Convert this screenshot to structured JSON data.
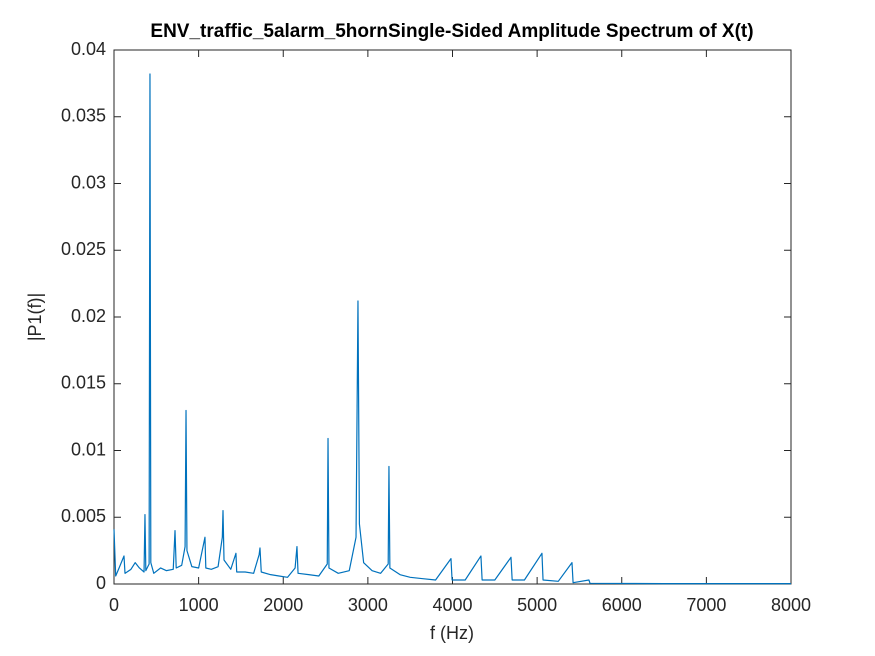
{
  "chart_data": {
    "type": "line",
    "title": "ENV_traffic_5alarm_5hornSingle-Sided Amplitude Spectrum of X(t)",
    "xlabel": "f (Hz)",
    "ylabel": "|P1(f)|",
    "xlim": [
      0,
      8000
    ],
    "ylim": [
      0,
      0.04
    ],
    "xticks": [
      0,
      1000,
      2000,
      3000,
      4000,
      5000,
      6000,
      7000,
      8000
    ],
    "yticks": [
      0,
      0.005,
      0.01,
      0.015,
      0.02,
      0.025,
      0.03,
      0.035,
      0.04
    ],
    "grid": false,
    "series": [
      {
        "color": "#0072bd",
        "x": [
          0,
          20,
          60,
          118,
          130,
          200,
          250,
          300,
          355,
          366,
          376,
          415,
          425,
          435,
          470,
          550,
          620,
          700,
          721,
          735,
          800,
          840,
          851,
          862,
          920,
          1000,
          1075,
          1085,
          1150,
          1230,
          1280,
          1288,
          1300,
          1380,
          1441,
          1450,
          1550,
          1650,
          1715,
          1725,
          1740,
          1850,
          1950,
          2050,
          2140,
          2162,
          2175,
          2300,
          2420,
          2520,
          2529,
          2540,
          2650,
          2780,
          2860,
          2883,
          2900,
          2950,
          3050,
          3150,
          3240,
          3249,
          3260,
          3380,
          3500,
          3650,
          3800,
          3982,
          3995,
          4150,
          4336,
          4350,
          4500,
          4691,
          4705,
          4850,
          5057,
          5070,
          5250,
          5412,
          5425,
          5612,
          5625,
          6500,
          7500,
          8000
        ],
        "values": [
          0.0041,
          0.0006,
          0.0012,
          0.0021,
          0.0008,
          0.0011,
          0.0016,
          0.0012,
          0.0009,
          0.0052,
          0.001,
          0.0015,
          0.0382,
          0.0016,
          0.0008,
          0.0012,
          0.001,
          0.0011,
          0.004,
          0.0012,
          0.0014,
          0.0028,
          0.013,
          0.0025,
          0.0013,
          0.0012,
          0.0035,
          0.0012,
          0.0011,
          0.0013,
          0.0035,
          0.0055,
          0.0018,
          0.0011,
          0.0023,
          0.0009,
          0.0009,
          0.0008,
          0.0022,
          0.0027,
          0.0009,
          0.0007,
          0.0006,
          0.0005,
          0.0012,
          0.0028,
          0.0008,
          0.0007,
          0.0006,
          0.0015,
          0.0109,
          0.0012,
          0.0008,
          0.001,
          0.0035,
          0.0212,
          0.0045,
          0.0016,
          0.001,
          0.0008,
          0.0015,
          0.0088,
          0.0012,
          0.0007,
          0.0005,
          0.0004,
          0.0003,
          0.0019,
          0.0003,
          0.0003,
          0.0021,
          0.0003,
          0.0003,
          0.002,
          0.0003,
          0.0003,
          0.0023,
          0.0003,
          0.0002,
          0.0016,
          0.0001,
          0.0003,
          5e-05,
          3e-05,
          3e-05,
          3e-05
        ]
      }
    ]
  }
}
